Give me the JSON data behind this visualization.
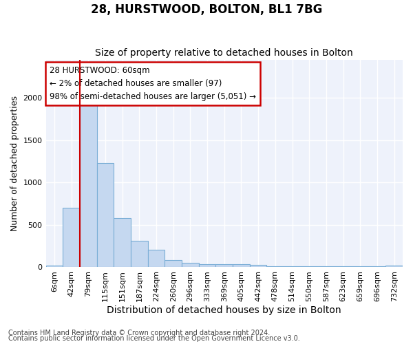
{
  "title1": "28, HURSTWOOD, BOLTON, BL1 7BG",
  "title2": "Size of property relative to detached houses in Bolton",
  "xlabel": "Distribution of detached houses by size in Bolton",
  "ylabel": "Number of detached properties",
  "categories": [
    "6sqm",
    "42sqm",
    "79sqm",
    "115sqm",
    "151sqm",
    "187sqm",
    "224sqm",
    "260sqm",
    "296sqm",
    "333sqm",
    "369sqm",
    "405sqm",
    "442sqm",
    "478sqm",
    "514sqm",
    "550sqm",
    "587sqm",
    "623sqm",
    "659sqm",
    "696sqm",
    "732sqm"
  ],
  "values": [
    15,
    700,
    1950,
    1230,
    575,
    305,
    200,
    80,
    45,
    35,
    35,
    30,
    25,
    5,
    5,
    5,
    5,
    5,
    5,
    5,
    15
  ],
  "bar_color": "#c5d8f0",
  "bar_edge_color": "#7aaed6",
  "property_line_x": 1.5,
  "annotation_text": "28 HURSTWOOD: 60sqm\n← 2% of detached houses are smaller (97)\n98% of semi-detached houses are larger (5,051) →",
  "annotation_box_color": "#ffffff",
  "annotation_box_edge_color": "#cc0000",
  "vline_color": "#cc0000",
  "footer1": "Contains HM Land Registry data © Crown copyright and database right 2024.",
  "footer2": "Contains public sector information licensed under the Open Government Licence v3.0.",
  "ylim": [
    0,
    2450
  ],
  "background_color": "#ffffff",
  "plot_background": "#eef2fb",
  "grid_color": "#ffffff",
  "title1_fontsize": 12,
  "title2_fontsize": 10,
  "xlabel_fontsize": 10,
  "ylabel_fontsize": 9,
  "tick_fontsize": 8,
  "footer_fontsize": 7,
  "annotation_fontsize": 8.5
}
